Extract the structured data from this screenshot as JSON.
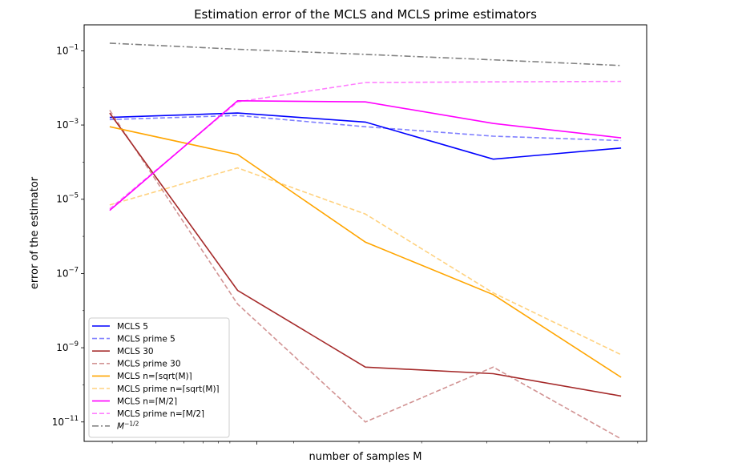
{
  "chart_data": {
    "type": "line",
    "title": "Estimation error of the MCLS and MCLS prime estimators",
    "xlabel": "number of samples M",
    "ylabel": "error of the estimator",
    "yscale": "log",
    "ylim": [
      3e-12,
      0.5
    ],
    "xlim": [
      -0.2,
      4.2
    ],
    "x": [
      0,
      1,
      2,
      3,
      4
    ],
    "x_tick_labels_shown": false,
    "y_ticks": [
      {
        "value": 1e-11,
        "base": "10",
        "exp": "−11"
      },
      {
        "value": 1e-09,
        "base": "10",
        "exp": "−9"
      },
      {
        "value": 1e-07,
        "base": "10",
        "exp": "−7"
      },
      {
        "value": 1e-05,
        "base": "10",
        "exp": "−5"
      },
      {
        "value": 0.001,
        "base": "10",
        "exp": "−3"
      },
      {
        "value": 0.1,
        "base": "10",
        "exp": "−1"
      }
    ],
    "legend_position": "lower-left",
    "series": [
      {
        "name": "MCLS 5",
        "color": "#0000ff",
        "dash": "solid",
        "opacity": 1.0,
        "values": [
          0.0016,
          0.0021,
          0.0012,
          0.00012,
          0.00024
        ]
      },
      {
        "name": "MCLS prime 5",
        "color": "#0000ff",
        "dash": "dashed",
        "opacity": 0.5,
        "values": [
          0.0014,
          0.0018,
          0.0009,
          0.0005,
          0.00038
        ]
      },
      {
        "name": "MCLS 30",
        "color": "#a52a2a",
        "dash": "solid",
        "opacity": 1.0,
        "values": [
          0.0021,
          3.5e-08,
          3e-10,
          2e-10,
          5e-11
        ]
      },
      {
        "name": "MCLS prime 30",
        "color": "#a52a2a",
        "dash": "dashed",
        "opacity": 0.5,
        "values": [
          0.0025,
          1.5e-08,
          1e-11,
          3e-10,
          3.5e-12
        ]
      },
      {
        "name": "MCLS n=⌈sqrt(M)⌉",
        "color": "#ffa500",
        "dash": "solid",
        "opacity": 1.0,
        "values": [
          0.0009,
          0.00016,
          7e-07,
          2.7e-08,
          1.6e-10
        ]
      },
      {
        "name": "MCLS prime n=⌈sqrt(M)⌉",
        "color": "#ffa500",
        "dash": "dashed",
        "opacity": 0.5,
        "values": [
          7e-06,
          7e-05,
          4e-06,
          3e-08,
          6.5e-10
        ]
      },
      {
        "name": "MCLS n=⌈M/2⌉",
        "color": "#ff00ff",
        "dash": "solid",
        "opacity": 1.0,
        "values": [
          5e-06,
          0.0045,
          0.0042,
          0.0011,
          0.00045
        ]
      },
      {
        "name": "MCLS prime n=⌈M/2⌉",
        "color": "#ff00ff",
        "dash": "dashed",
        "opacity": 0.5,
        "values": [
          5.5e-06,
          0.0042,
          0.014,
          0.0145,
          0.015
        ]
      },
      {
        "name": "M^{-1/2}",
        "color": "#808080",
        "dash": "dashdot",
        "opacity": 1.0,
        "name_rich": {
          "base": "M",
          "exp": "−1/2"
        },
        "values": [
          0.16,
          0.11,
          0.08,
          0.057,
          0.04
        ]
      }
    ]
  }
}
